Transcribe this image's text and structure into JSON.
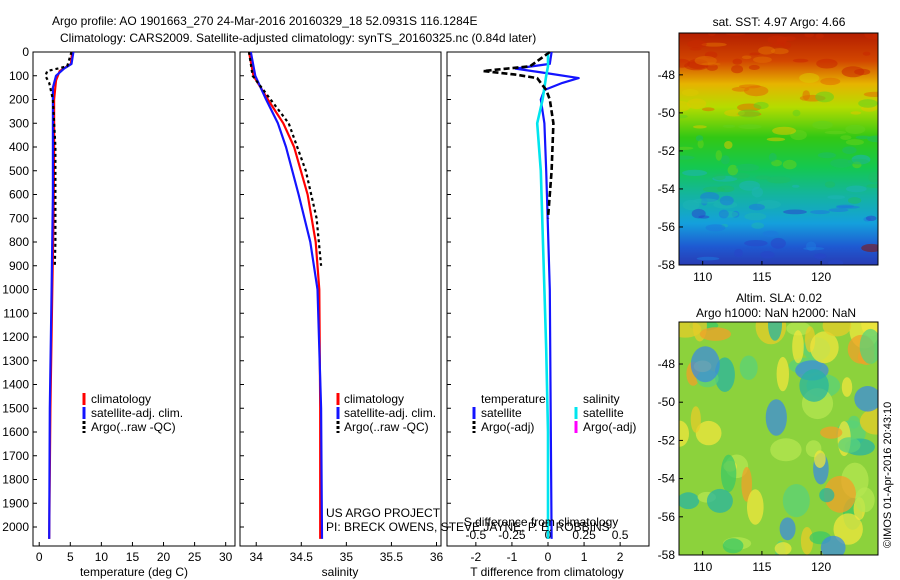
{
  "header": {
    "title_line1": "Argo profile: AO 1901663_270 24-Mar-2016 20160329_18 52.0931S 116.1284E",
    "title_line2": "Climatology: CARS2009. Satellite-adjusted climatology: synTS_20160325.nc (0.84d later)"
  },
  "colors": {
    "climatology": "#ff0000",
    "satellite_adj": "#1414ff",
    "argo": "#000000",
    "sal_satellite": "#00e5ee",
    "sal_argo": "#ff00ff"
  },
  "chart_data": [
    {
      "type": "line",
      "name": "temperature-profile",
      "xlabel": "temperature (deg C)",
      "ylabel": "",
      "xlim": [
        -1,
        31.5
      ],
      "ylim": [
        2080,
        0
      ],
      "xticks": [
        0,
        5,
        10,
        15,
        20,
        25,
        30
      ],
      "yticks": [
        0,
        100,
        200,
        300,
        400,
        500,
        600,
        700,
        800,
        900,
        1000,
        1100,
        1200,
        1300,
        1400,
        1500,
        1600,
        1700,
        1800,
        1900,
        2000
      ],
      "legend": [
        "climatology",
        "satellite-adj. clim.",
        "Argo(..raw -QC)"
      ],
      "legend_position": "lower-center",
      "series": [
        {
          "name": "climatology",
          "y": [
            0,
            50,
            80,
            120,
            200,
            400,
            700,
            1000,
            1500,
            2050
          ],
          "x": [
            5.3,
            5.1,
            3.3,
            2.7,
            2.4,
            2.4,
            2.3,
            2.1,
            1.8,
            1.6
          ]
        },
        {
          "name": "satellite-adj. clim.",
          "y": [
            0,
            50,
            70,
            100,
            150,
            250,
            600,
            1000,
            1500,
            2050
          ],
          "x": [
            5.5,
            5.2,
            4.0,
            2.7,
            2.2,
            2.2,
            2.2,
            2.0,
            1.7,
            1.6
          ]
        },
        {
          "name": "Argo(..raw -QC)",
          "y": [
            0,
            60,
            80,
            100,
            130,
            200,
            400,
            800,
            900
          ],
          "x": [
            5.2,
            4.5,
            1.3,
            1.0,
            1.6,
            2.2,
            2.6,
            2.6,
            2.5
          ]
        }
      ]
    },
    {
      "type": "line",
      "name": "salinity-profile",
      "xlabel": "salinity",
      "xlim": [
        33.82,
        36.05
      ],
      "ylim": [
        2080,
        0
      ],
      "xticks": [
        34,
        34.5,
        35,
        35.5,
        36
      ],
      "xticklabels": [
        "34",
        "34.5",
        "35",
        "35.5",
        "36"
      ],
      "legend": [
        "climatology",
        "satellite-adj. clim.",
        "Argo(..raw -QC)"
      ],
      "legend_position": "lower-center",
      "series": [
        {
          "name": "climatology",
          "y": [
            0,
            100,
            200,
            300,
            400,
            600,
            800,
            1000,
            1500,
            2050
          ],
          "x": [
            33.92,
            33.97,
            34.13,
            34.3,
            34.42,
            34.57,
            34.66,
            34.7,
            34.71,
            34.71
          ]
        },
        {
          "name": "satellite-adj. clim.",
          "y": [
            0,
            100,
            200,
            300,
            400,
            600,
            800,
            1000,
            1500,
            2050
          ],
          "x": [
            33.94,
            33.99,
            34.11,
            34.24,
            34.33,
            34.47,
            34.6,
            34.68,
            34.72,
            34.73
          ]
        },
        {
          "name": "Argo(..raw -QC)",
          "y": [
            0,
            100,
            200,
            300,
            500,
            700,
            900
          ],
          "x": [
            33.92,
            33.96,
            34.16,
            34.36,
            34.55,
            34.67,
            34.72
          ]
        }
      ]
    },
    {
      "type": "line",
      "name": "difference-profile",
      "xlabel": "T difference from climatology",
      "xlabel_top": "S difference from climatology",
      "xlim": [
        -2.8,
        2.8
      ],
      "ylim": [
        2080,
        0
      ],
      "xticks": [
        -2,
        -1,
        0,
        1,
        2
      ],
      "top_ticks": [
        -0.5,
        -0.25,
        0,
        0.25,
        0.5
      ],
      "top_ticklabels": [
        "-0.5",
        "-0.25",
        "0",
        "0.25",
        "0.5"
      ],
      "legend_temperature": [
        "temperature",
        "satellite",
        "Argo(-adj)"
      ],
      "legend_salinity": [
        "salinity",
        "satellite",
        "Argo(-adj)"
      ],
      "series": [
        {
          "name": "temperature satellite",
          "y": [
            0,
            50,
            70,
            90,
            110,
            130,
            160,
            200,
            300,
            500,
            1000,
            2050
          ],
          "x": [
            0.1,
            0.05,
            -0.9,
            0.0,
            0.85,
            0.4,
            -0.1,
            -0.2,
            -0.1,
            -0.05,
            0.05,
            0.1
          ]
        },
        {
          "name": "salinity satellite",
          "y": [
            0,
            60,
            100,
            150,
            200,
            300,
            500,
            1000,
            1250,
            1600,
            2050
          ],
          "x": [
            0.0,
            0.0,
            -0.05,
            -0.1,
            -0.15,
            -0.3,
            -0.2,
            -0.1,
            -0.05,
            0.0,
            0.0
          ]
        },
        {
          "name": "temperature Argo(-adj)",
          "y": [
            0,
            60,
            80,
            95,
            110,
            130,
            160,
            200,
            300,
            500,
            700
          ],
          "x": [
            0.05,
            -0.5,
            -1.8,
            -0.9,
            -0.3,
            -0.2,
            -0.05,
            0.05,
            0.15,
            0.1,
            0.0
          ]
        }
      ]
    },
    {
      "type": "heatmap",
      "name": "sst-map",
      "title": "sat. SST: 4.97 Argo: 4.66",
      "xlim": [
        108,
        124.8
      ],
      "ylim": [
        -58,
        -45.8
      ],
      "xticks": [
        110,
        115,
        120
      ],
      "yticks": [
        -48,
        -50,
        -52,
        -54,
        -56,
        -58
      ]
    },
    {
      "type": "heatmap",
      "name": "sla-map",
      "title": "Altim. SLA: 0.02",
      "subtitle": "Argo h1000: NaN h2000: NaN",
      "xlim": [
        108,
        124.8
      ],
      "ylim": [
        -58,
        -45.8
      ],
      "xticks": [
        110,
        115,
        120
      ],
      "yticks": [
        -48,
        -50,
        -52,
        -54,
        -56,
        -58
      ]
    }
  ],
  "credits": {
    "project": "US ARGO PROJECT",
    "pi": "PI: BRECK OWENS, STEVE JAYNE, P. E. ROBBINS",
    "imos": "©IMOS 01-Apr-2016 20:43:10"
  }
}
